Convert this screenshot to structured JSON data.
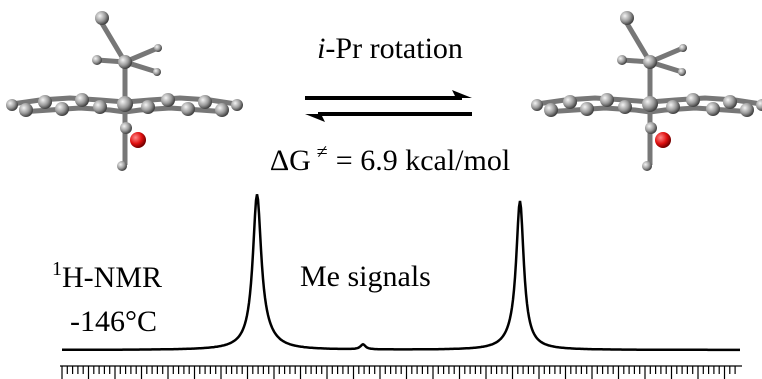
{
  "reaction": {
    "label_italic": "i",
    "label": "-Pr rotation",
    "energy_symbol": "ΔG",
    "energy_superscript": "≠",
    "energy_value": "= 6.9 kcal/mol"
  },
  "spectrum": {
    "nucleus_mass": "1",
    "nucleus": "H-NMR",
    "temperature": "-146°C",
    "signal_label": "Me signals"
  }
}
